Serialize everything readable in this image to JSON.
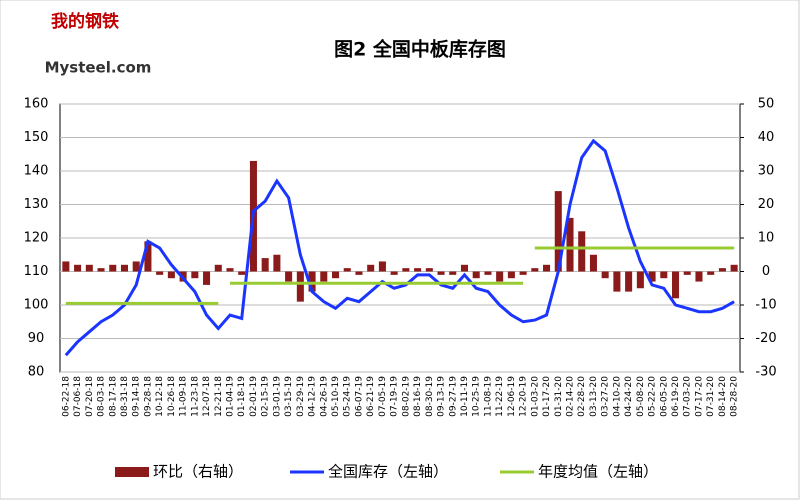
{
  "logo": {
    "cn": "我的钢铁",
    "en": "Mysteel.com"
  },
  "chart_data": {
    "type": "combo",
    "title": "图2 全国中板库存图",
    "categories": [
      "06-22-18",
      "07-06-18",
      "07-20-18",
      "08-03-18",
      "08-17-18",
      "08-31-18",
      "09-14-18",
      "09-28-18",
      "10-12-18",
      "10-26-18",
      "11-09-18",
      "11-23-18",
      "12-07-18",
      "12-21-18",
      "01-04-19",
      "01-18-19",
      "02-01-19",
      "02-15-19",
      "03-01-19",
      "03-15-19",
      "03-29-19",
      "04-12-19",
      "04-26-19",
      "05-10-19",
      "05-24-19",
      "06-07-19",
      "06-21-19",
      "07-05-19",
      "07-19-19",
      "08-02-19",
      "08-16-19",
      "08-30-19",
      "09-13-19",
      "09-27-19",
      "10-11-19",
      "10-25-19",
      "11-08-19",
      "11-22-19",
      "12-06-19",
      "12-20-19",
      "01-03-20",
      "01-17-20",
      "01-31-20",
      "02-14-20",
      "02-28-20",
      "03-13-20",
      "03-27-20",
      "04-10-20",
      "04-24-20",
      "05-08-20",
      "05-22-20",
      "06-05-20",
      "06-19-20",
      "07-03-20",
      "07-17-20",
      "07-31-20",
      "08-14-20",
      "08-28-20"
    ],
    "series": [
      {
        "name": "环比（右轴）",
        "type": "bar",
        "axis": "y2",
        "color": "#8b1a1a",
        "values": [
          3,
          2,
          2,
          1,
          2,
          2,
          3,
          9,
          -1,
          -2,
          -3,
          -2,
          -4,
          2,
          1,
          -1,
          33,
          4,
          5,
          -3,
          -9,
          -6,
          -3,
          -2,
          1,
          -1,
          2,
          3,
          -1,
          1,
          1,
          1,
          -1,
          -1,
          2,
          -2,
          -1,
          -3,
          -2,
          -1,
          1,
          2,
          24,
          16,
          12,
          5,
          -2,
          -6,
          -6,
          -5,
          -3,
          -2,
          -8,
          -1,
          -3,
          -1,
          1,
          2
        ]
      },
      {
        "name": "全国库存（左轴）",
        "type": "line",
        "color": "#1a35ff",
        "values": [
          85,
          89,
          92,
          95,
          97,
          100,
          106,
          119,
          117,
          112,
          108,
          104,
          97,
          93,
          97,
          96,
          128,
          131,
          137,
          132,
          115,
          104,
          101,
          99,
          102,
          101,
          104,
          107,
          105,
          106,
          109,
          109,
          106,
          105,
          109,
          105,
          104,
          100,
          97,
          95,
          95.5,
          97,
          110,
          130,
          144,
          149,
          146,
          135,
          123,
          113,
          106,
          105,
          100,
          99,
          98,
          98,
          99,
          101
        ]
      },
      {
        "name": "年度均值（左轴）",
        "type": "step",
        "color": "#99cc33",
        "values": [
          100.5,
          100.5,
          100.5,
          100.5,
          100.5,
          100.5,
          100.5,
          100.5,
          100.5,
          100.5,
          100.5,
          100.5,
          100.5,
          100.5,
          106.5,
          106.5,
          106.5,
          106.5,
          106.5,
          106.5,
          106.5,
          106.5,
          106.5,
          106.5,
          106.5,
          106.5,
          106.5,
          106.5,
          106.5,
          106.5,
          106.5,
          106.5,
          106.5,
          106.5,
          106.5,
          106.5,
          106.5,
          106.5,
          106.5,
          106.5,
          117,
          117,
          117,
          117,
          117,
          117,
          117,
          117,
          117,
          117,
          117,
          117,
          117,
          117,
          117,
          117,
          117,
          117
        ]
      }
    ],
    "ylim": [
      80,
      160
    ],
    "yticks": [
      80,
      90,
      100,
      110,
      120,
      130,
      140,
      150,
      160
    ],
    "y2lim": [
      -30,
      50
    ],
    "y2ticks": [
      -30,
      -20,
      -10,
      0,
      10,
      20,
      30,
      40,
      50
    ],
    "grid": true
  }
}
